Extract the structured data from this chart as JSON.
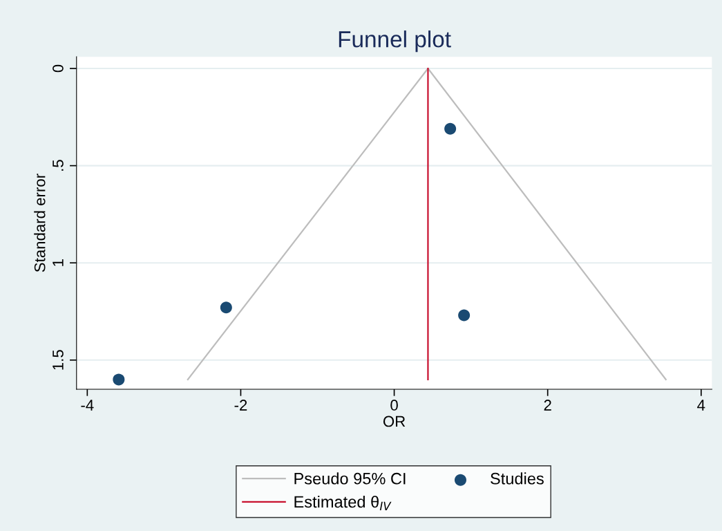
{
  "chart_data": {
    "type": "scatter",
    "title": "Funnel plot",
    "xlabel": "OR",
    "ylabel": "Standard error",
    "xlim": [
      -4.14,
      4.14
    ],
    "xticks": [
      -4,
      -2,
      0,
      2,
      4
    ],
    "ylim": [
      1.65,
      -0.06
    ],
    "yticks": [
      0,
      {
        "value": 0.5,
        "label": ".5"
      },
      1,
      {
        "value": 1.5,
        "label": "1.5"
      }
    ],
    "grid": "y",
    "legend": "bottom",
    "series": [
      {
        "name": "Pseudo 95% CI",
        "type": "line",
        "color": "#bdbdbd",
        "x": [
          -2.69,
          0.44,
          3.54
        ],
        "values": [
          1.6,
          0,
          1.6
        ],
        "marker": "none",
        "line_style": "solid"
      },
      {
        "name": "Studies",
        "color": "#1a4a72",
        "x": [
          0.73,
          -2.19,
          0.91,
          -3.59
        ],
        "values": [
          0.31,
          1.23,
          1.27,
          1.6
        ],
        "marker": "circle"
      },
      {
        "name": "Estimated θ$_{IV}$",
        "type": "line",
        "color": "#c8102e",
        "x": [
          0.44,
          0.44
        ],
        "values": [
          0,
          1.6
        ],
        "marker": "none",
        "line_style": "solid"
      }
    ]
  }
}
